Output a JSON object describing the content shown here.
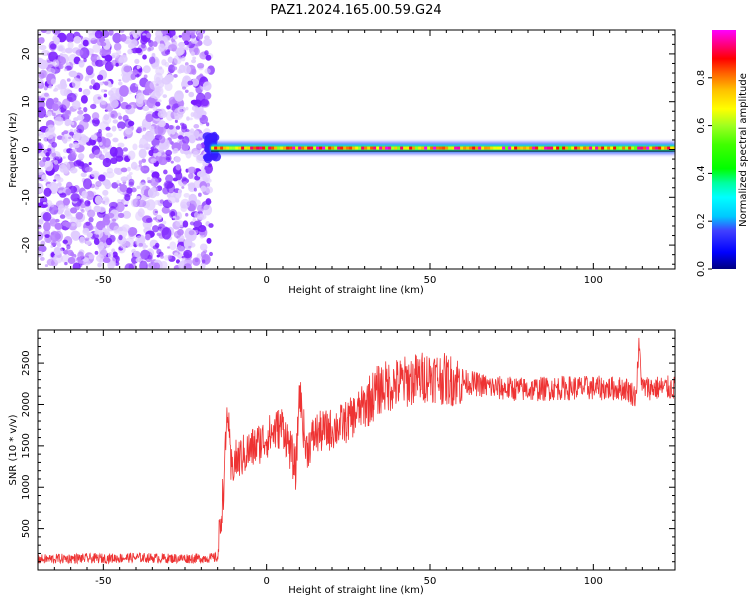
{
  "title": "PAZ1.2024.165.00.59.G24",
  "chart_data": [
    {
      "type": "heatmap",
      "title": "PAZ1.2024.165.00.59.G24",
      "xlabel": "Height of straight line (km)",
      "ylabel": "Frequency (Hz)",
      "xlim": [
        -70,
        125
      ],
      "ylim": [
        -25,
        25
      ],
      "xticks": [
        -50,
        0,
        50,
        100
      ],
      "yticks": [
        -20,
        -10,
        0,
        10,
        20
      ],
      "colorbar": {
        "label": "Normalized spectral amplitude",
        "range": [
          0,
          1
        ],
        "ticks": [
          0.0,
          0.2,
          0.4,
          0.6,
          0.8
        ],
        "colormap": "gist_ncar"
      },
      "noise_region": {
        "x": [
          -70,
          -17
        ],
        "y": [
          -25,
          25
        ],
        "max_amplitude": 0.2
      },
      "signal_band": {
        "x": [
          -17,
          125
        ],
        "center_freq": 0.3,
        "peak_amplitude": 1.0
      }
    },
    {
      "type": "line",
      "xlabel": "Height of straight line (km)",
      "ylabel": "SNR (10 * v/v)",
      "xlim": [
        -70,
        125
      ],
      "ylim": [
        0,
        2900
      ],
      "xticks": [
        -50,
        0,
        50,
        100
      ],
      "yticks": [
        500,
        1000,
        1500,
        2000,
        2500
      ],
      "color": "#ee3333",
      "series": [
        {
          "x": [
            -70,
            -60,
            -50,
            -40,
            -30,
            -20,
            -15,
            -13,
            -12,
            -11,
            -10,
            -5,
            0,
            5,
            9,
            10,
            12,
            15,
            20,
            25,
            30,
            35,
            40,
            45,
            50,
            55,
            60,
            70,
            80,
            90,
            100,
            110,
            113,
            114,
            115,
            120,
            125
          ],
          "values": [
            130,
            140,
            140,
            150,
            140,
            140,
            150,
            1100,
            2000,
            1200,
            1300,
            1450,
            1600,
            1750,
            1200,
            2200,
            1450,
            1650,
            1700,
            1800,
            2000,
            2200,
            2250,
            2300,
            2350,
            2300,
            2280,
            2200,
            2180,
            2200,
            2200,
            2190,
            2100,
            2700,
            2200,
            2200,
            2200
          ]
        }
      ]
    }
  ]
}
